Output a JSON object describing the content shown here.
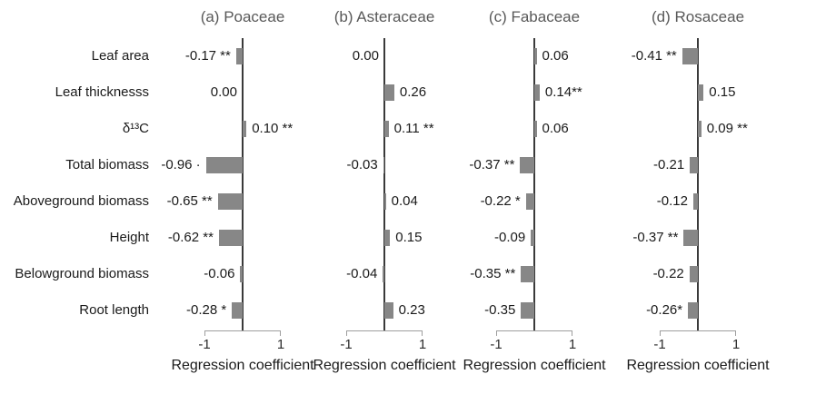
{
  "chart_data": {
    "type": "bar",
    "orientation": "horizontal",
    "categories": [
      "Leaf area",
      "Leaf thicknesss",
      "δ¹³C",
      "Total biomass",
      "Aboveground biomass",
      "Height",
      "Belowground biomass",
      "Root length"
    ],
    "panels": [
      {
        "id": "a",
        "title": "(a) Poaceae",
        "values": [
          -0.17,
          0.0,
          0.1,
          -0.96,
          -0.65,
          -0.62,
          -0.06,
          -0.28
        ],
        "value_labels": [
          "-0.17 **",
          "0.00",
          "0.10 **",
          "-0.96 ·",
          "-0.65 **",
          "-0.62 **",
          "-0.06",
          "-0.28 *"
        ]
      },
      {
        "id": "b",
        "title": "(b) Asteraceae",
        "values": [
          0.0,
          0.26,
          0.11,
          -0.03,
          0.04,
          0.15,
          -0.04,
          0.23
        ],
        "value_labels": [
          "0.00",
          "0.26",
          "0.11 **",
          "-0.03",
          "0.04",
          "0.15",
          "-0.04",
          "0.23"
        ]
      },
      {
        "id": "c",
        "title": "(c) Fabaceae",
        "values": [
          0.06,
          0.14,
          0.06,
          -0.37,
          -0.22,
          -0.09,
          -0.35,
          -0.35
        ],
        "value_labels": [
          "0.06",
          "0.14**",
          "0.06",
          "-0.37 **",
          "-0.22 *",
          "-0.09",
          "-0.35 **",
          "-0.35"
        ]
      },
      {
        "id": "d",
        "title": "(d) Rosaceae",
        "values": [
          -0.41,
          0.15,
          0.09,
          -0.21,
          -0.12,
          -0.37,
          -0.22,
          -0.26
        ],
        "value_labels": [
          "-0.41 **",
          "0.15",
          "0.09 **",
          "-0.21",
          "-0.12",
          "-0.37 **",
          "-0.22",
          "-0.26*"
        ]
      }
    ],
    "xlabel": "Regression coefficient",
    "xticks": [
      "-1",
      "1"
    ],
    "xlim": [
      -1,
      1
    ],
    "grid": false,
    "legend": false,
    "bar_color": "#878787",
    "zero_line_color": "#3a3a3a",
    "axis_color": "#9e9e9e",
    "title_color": "#595959",
    "text_color": "#1a1a1a"
  }
}
